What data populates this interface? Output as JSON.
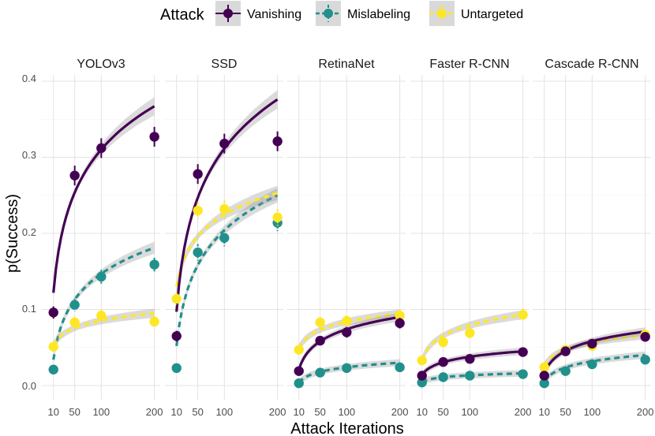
{
  "chart_data": {
    "type": "scatter",
    "xlabel": "Attack Iterations",
    "ylabel": "p(Success)",
    "x_ticks": [
      10,
      50,
      100,
      200
    ],
    "x_range": [
      0,
      205
    ],
    "y_ticks": [
      0.0,
      0.1,
      0.2,
      0.3,
      0.4
    ],
    "y_tick_labels": [
      "0.0",
      "0.1",
      "0.2",
      "0.3",
      "0.4"
    ],
    "y_range": [
      -0.01,
      0.41
    ],
    "x_tick_labels": [
      "10",
      "50",
      "100",
      "200"
    ],
    "legend": {
      "title": "Attack",
      "position": "top",
      "entries": [
        {
          "name": "Vanishing",
          "color": "#440154",
          "dash": "solid"
        },
        {
          "name": "Mislabeling",
          "color": "#21908C",
          "dash": "dashed"
        },
        {
          "name": "Untargeted",
          "color": "#FDE725",
          "dash": "dashed"
        }
      ]
    },
    "panels": [
      {
        "title": "YOLOv3",
        "series": {
          "Vanishing": {
            "x": [
              10,
              50,
              100,
              200
            ],
            "y": [
              0.096,
              0.276,
              0.312,
              0.327
            ],
            "err": [
              0.008,
              0.013,
              0.013,
              0.013
            ],
            "fit": [
              0.122,
              0.367
            ]
          },
          "Mislabeling": {
            "x": [
              10,
              50,
              100,
              200
            ],
            "y": [
              0.021,
              0.106,
              0.143,
              0.159
            ],
            "err": [
              0.004,
              0.008,
              0.009,
              0.009
            ],
            "fit": [
              0.034,
              0.181
            ]
          },
          "Untargeted": {
            "x": [
              10,
              50,
              100,
              200
            ],
            "y": [
              0.051,
              0.083,
              0.092,
              0.084
            ],
            "err": [
              0.006,
              0.007,
              0.008,
              0.007
            ],
            "fit": [
              0.053,
              0.095
            ]
          }
        }
      },
      {
        "title": "SSD",
        "series": {
          "Vanishing": {
            "x": [
              10,
              50,
              100,
              200
            ],
            "y": [
              0.065,
              0.278,
              0.318,
              0.321
            ],
            "err": [
              0.007,
              0.013,
              0.013,
              0.013
            ],
            "fit": [
              0.097,
              0.376
            ]
          },
          "Mislabeling": {
            "x": [
              10,
              50,
              100,
              200
            ],
            "y": [
              0.023,
              0.175,
              0.194,
              0.214
            ],
            "err": [
              0.004,
              0.011,
              0.011,
              0.011
            ],
            "fit": [
              0.052,
              0.25
            ]
          },
          "Untargeted": {
            "x": [
              10,
              50,
              100,
              200
            ],
            "y": [
              0.114,
              0.23,
              0.232,
              0.221
            ],
            "err": [
              0.008,
              0.011,
              0.011,
              0.011
            ],
            "fit": [
              0.13,
              0.253
            ]
          }
        }
      },
      {
        "title": "RetinaNet",
        "series": {
          "Vanishing": {
            "x": [
              10,
              50,
              100,
              200
            ],
            "y": [
              0.019,
              0.059,
              0.07,
              0.082
            ],
            "err": [
              0.004,
              0.006,
              0.007,
              0.007
            ],
            "fit": [
              0.021,
              0.09
            ]
          },
          "Mislabeling": {
            "x": [
              10,
              50,
              100,
              200
            ],
            "y": [
              0.003,
              0.017,
              0.023,
              0.024
            ],
            "err": [
              0.002,
              0.003,
              0.004,
              0.004
            ],
            "fit": [
              0.004,
              0.03
            ]
          },
          "Untargeted": {
            "x": [
              10,
              50,
              100,
              200
            ],
            "y": [
              0.047,
              0.083,
              0.085,
              0.092
            ],
            "err": [
              0.006,
              0.007,
              0.007,
              0.008
            ],
            "fit": [
              0.049,
              0.094
            ]
          }
        }
      },
      {
        "title": "Faster R-CNN",
        "series": {
          "Vanishing": {
            "x": [
              10,
              50,
              100,
              200
            ],
            "y": [
              0.013,
              0.031,
              0.035,
              0.044
            ],
            "err": [
              0.003,
              0.004,
              0.005,
              0.005
            ],
            "fit": [
              0.014,
              0.045
            ]
          },
          "Mislabeling": {
            "x": [
              10,
              50,
              100,
              200
            ],
            "y": [
              0.004,
              0.011,
              0.013,
              0.015
            ],
            "err": [
              0.002,
              0.003,
              0.003,
              0.003
            ],
            "fit": [
              0.005,
              0.016
            ]
          },
          "Untargeted": {
            "x": [
              10,
              50,
              100,
              200
            ],
            "y": [
              0.033,
              0.057,
              0.069,
              0.093
            ],
            "err": [
              0.005,
              0.006,
              0.007,
              0.008
            ],
            "fit": [
              0.034,
              0.093
            ]
          }
        }
      },
      {
        "title": "Cascade R-CNN",
        "series": {
          "Vanishing": {
            "x": [
              10,
              50,
              100,
              200
            ],
            "y": [
              0.013,
              0.045,
              0.055,
              0.064
            ],
            "err": [
              0.003,
              0.005,
              0.006,
              0.006
            ],
            "fit": [
              0.016,
              0.071
            ]
          },
          "Mislabeling": {
            "x": [
              10,
              50,
              100,
              200
            ],
            "y": [
              0.003,
              0.019,
              0.028,
              0.034
            ],
            "err": [
              0.002,
              0.004,
              0.004,
              0.005
            ],
            "fit": [
              0.005,
              0.04
            ]
          },
          "Untargeted": {
            "x": [
              10,
              50,
              100,
              200
            ],
            "y": [
              0.024,
              0.047,
              0.052,
              0.067
            ],
            "err": [
              0.004,
              0.006,
              0.006,
              0.007
            ],
            "fit": [
              0.026,
              0.066
            ]
          }
        }
      }
    ]
  }
}
